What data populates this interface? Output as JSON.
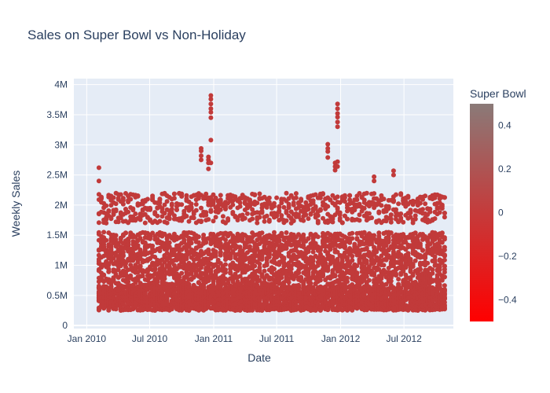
{
  "chart_data": {
    "type": "scatter",
    "title": "Sales on Super Bowl vs Non-Holiday",
    "xlabel": "Date",
    "ylabel": "Weekly Sales",
    "x_range": [
      "2009-11-25",
      "2012-11-20"
    ],
    "y_range": [
      -50000,
      4100000
    ],
    "x_ticks": [
      {
        "date": "2010-01-01",
        "label": "Jan 2010"
      },
      {
        "date": "2010-07-01",
        "label": "Jul 2010"
      },
      {
        "date": "2011-01-01",
        "label": "Jan 2011"
      },
      {
        "date": "2011-07-01",
        "label": "Jul 2011"
      },
      {
        "date": "2012-01-01",
        "label": "Jan 2012"
      },
      {
        "date": "2012-07-01",
        "label": "Jul 2012"
      }
    ],
    "y_ticks": [
      {
        "value": 0,
        "label": "0"
      },
      {
        "value": 500000,
        "label": "0.5M"
      },
      {
        "value": 1000000,
        "label": "1M"
      },
      {
        "value": 1500000,
        "label": "1.5M"
      },
      {
        "value": 2000000,
        "label": "2M"
      },
      {
        "value": 2500000,
        "label": "2.5M"
      },
      {
        "value": 3000000,
        "label": "3M"
      },
      {
        "value": 3500000,
        "label": "3.5M"
      },
      {
        "value": 4000000,
        "label": "4M"
      }
    ],
    "grid": true,
    "marker_color": "#c13a3a",
    "series": [
      {
        "weeks_start": "2010-02-05",
        "weeks_end": "2012-10-26",
        "week_step_days": 7,
        "low_band": [
          250000,
          650000
        ],
        "mid_band": [
          650000,
          1550000
        ],
        "high_band": [
          1700000,
          2200000
        ],
        "peaks": [
          {
            "week": "2010-02-05",
            "values": [
              2620000,
              2400000
            ]
          },
          {
            "week": "2010-11-26",
            "values": [
              2940000,
              2900000,
              2820000,
              2750000
            ]
          },
          {
            "week": "2010-12-17",
            "values": [
              2800000,
              2750000,
              2700000,
              2600000
            ]
          },
          {
            "week": "2010-12-24",
            "values": [
              3820000,
              3760000,
              3680000,
              3600000,
              3540000,
              3450000,
              3080000,
              2700000
            ]
          },
          {
            "week": "2011-11-25",
            "values": [
              3010000,
              2940000,
              2890000,
              2790000
            ]
          },
          {
            "week": "2011-12-16",
            "values": [
              2700000,
              2640000,
              2580000
            ]
          },
          {
            "week": "2011-12-23",
            "values": [
              3680000,
              3600000,
              3520000,
              3460000,
              3380000,
              3300000,
              2720000,
              2640000
            ]
          },
          {
            "week": "2012-04-06",
            "values": [
              2470000,
              2400000
            ]
          },
          {
            "week": "2012-06-01",
            "values": [
              2570000,
              2500000
            ]
          }
        ]
      }
    ],
    "colorbar": {
      "title": "Super Bowl",
      "range": [
        -0.5,
        0.5
      ],
      "ticks": [
        {
          "value": 0.4,
          "label": "0.4"
        },
        {
          "value": 0.2,
          "label": "0.2"
        },
        {
          "value": 0,
          "label": "0"
        },
        {
          "value": -0.2,
          "label": "−0.2"
        },
        {
          "value": -0.4,
          "label": "−0.4"
        }
      ],
      "color_top": "#8a7a78",
      "color_bottom": "#ff0000"
    }
  }
}
